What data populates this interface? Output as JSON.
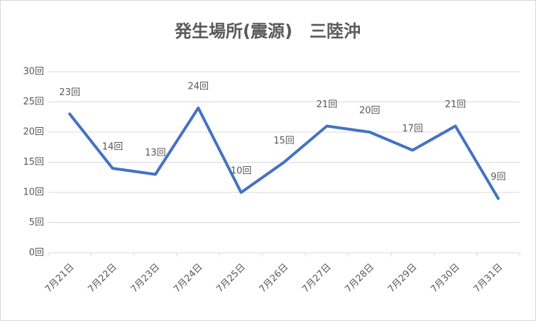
{
  "chart_data": {
    "type": "line",
    "title": "発生場所(震源)　三陸沖",
    "categories": [
      "7月21日",
      "7月22日",
      "7月23日",
      "7月24日",
      "7月25日",
      "7月26日",
      "7月27日",
      "7月28日",
      "7月29日",
      "7月30日",
      "7月31日"
    ],
    "series": [
      {
        "name": "回数",
        "color": "#4472c4",
        "values": [
          23,
          14,
          13,
          24,
          10,
          15,
          21,
          20,
          17,
          21,
          9
        ],
        "value_labels": [
          "23回",
          "14回",
          "13回",
          "24回",
          "10回",
          "15回",
          "21回",
          "20回",
          "17回",
          "21回",
          "9回"
        ]
      }
    ],
    "ylim": [
      0,
      30
    ],
    "yticks": [
      {
        "value": 0,
        "label": "0回"
      },
      {
        "value": 5,
        "label": "5回"
      },
      {
        "value": 10,
        "label": "10回"
      },
      {
        "value": 15,
        "label": "15回"
      },
      {
        "value": 20,
        "label": "20回"
      },
      {
        "value": 25,
        "label": "25回"
      },
      {
        "value": 30,
        "label": "30回"
      }
    ],
    "grid": true
  }
}
